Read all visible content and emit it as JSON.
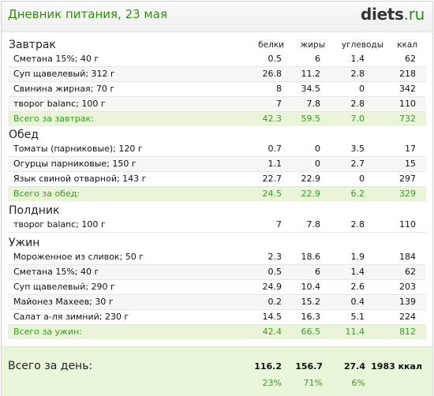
{
  "header": {
    "title": "Дневник питания, 23 мая",
    "logo_main": "diets",
    "logo_tld": ".ru"
  },
  "columns": {
    "proteins": "белки",
    "fats": "жиры",
    "carbs": "углеводы",
    "kcal": "ккал"
  },
  "meals": [
    {
      "title": "Завтрак",
      "items": [
        {
          "name": "Сметана 15%; 40 г",
          "p": "0.5",
          "f": "6",
          "c": "1.4",
          "k": "62"
        },
        {
          "name": "Суп щавелевый; 312 г",
          "p": "26.8",
          "f": "11.2",
          "c": "2.8",
          "k": "218"
        },
        {
          "name": "Свинина жирная; 70 г",
          "p": "8",
          "f": "34.5",
          "c": "0",
          "k": "342"
        },
        {
          "name": "творог balanc; 100 г",
          "p": "7",
          "f": "7.8",
          "c": "2.8",
          "k": "110"
        }
      ],
      "total": {
        "label": "Всего за завтрак:",
        "p": "42.3",
        "f": "59.5",
        "c": "7.0",
        "k": "732"
      }
    },
    {
      "title": "Обед",
      "items": [
        {
          "name": "Томаты (парниковые); 120 г",
          "p": "0.7",
          "f": "0",
          "c": "3.5",
          "k": "17"
        },
        {
          "name": "Огурцы парниковые; 150 г",
          "p": "1.1",
          "f": "0",
          "c": "2.7",
          "k": "15"
        },
        {
          "name": "Язык свиной отварной; 143 г",
          "p": "22.7",
          "f": "22.9",
          "c": "0",
          "k": "297"
        }
      ],
      "total": {
        "label": "Всего за обед:",
        "p": "24.5",
        "f": "22.9",
        "c": "6.2",
        "k": "329"
      }
    },
    {
      "title": "Полдник",
      "items": [
        {
          "name": "творог balanc; 100 г",
          "p": "7",
          "f": "7.8",
          "c": "2.8",
          "k": "110"
        }
      ]
    },
    {
      "title": "Ужин",
      "items": [
        {
          "name": "Мороженное из сливок; 50 г",
          "p": "2.3",
          "f": "18.6",
          "c": "1.9",
          "k": "184"
        },
        {
          "name": "Сметана 15%; 40 г",
          "p": "0.5",
          "f": "6",
          "c": "1.4",
          "k": "62"
        },
        {
          "name": "Суп щавелевый; 290 г",
          "p": "24.9",
          "f": "10.4",
          "c": "2.6",
          "k": "203"
        },
        {
          "name": "Майонез Махеев; 30 г",
          "p": "0.2",
          "f": "15.2",
          "c": "0.4",
          "k": "139"
        },
        {
          "name": "Салат а-ля зимний; 230 г",
          "p": "14.5",
          "f": "16.3",
          "c": "5.1",
          "k": "224"
        }
      ],
      "total": {
        "label": "Всего за ужин:",
        "p": "42.4",
        "f": "66.5",
        "c": "11.4",
        "k": "812"
      }
    }
  ],
  "day_total": {
    "label": "Всего за день:",
    "p": "116.2",
    "f": "156.7",
    "c": "27.4",
    "k": "1983 ккал",
    "p_pct": "23%",
    "f_pct": "71%",
    "c_pct": "6%"
  }
}
